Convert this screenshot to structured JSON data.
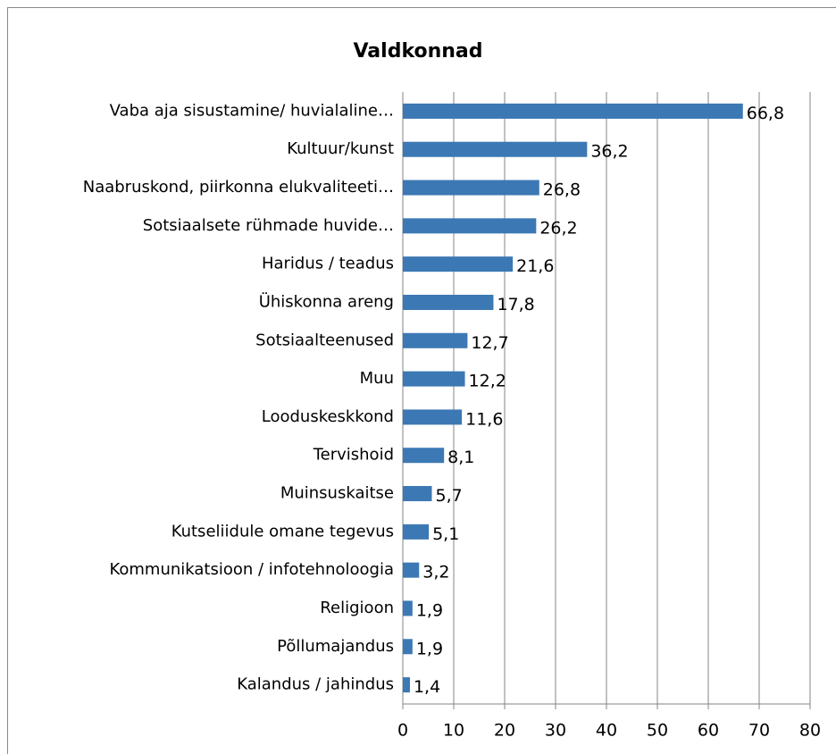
{
  "chart_data": {
    "type": "bar",
    "orientation": "horizontal",
    "title": "Valdkonnad",
    "categories": [
      "Vaba aja sisustamine/ huvialaline…",
      "Kultuur/kunst",
      "Naabruskond, piirkonna elukvaliteeti…",
      "Sotsiaalsete rühmade huvide…",
      "Haridus / teadus",
      "Ühiskonna areng",
      "Sotsiaalteenused",
      "Muu",
      "Looduskeskkond",
      "Tervishoid",
      "Muinsuskaitse",
      "Kutseliidule omane tegevus",
      "Kommunikatsioon / infotehnoloogia",
      "Religioon",
      "Põllumajandus",
      "Kalandus / jahindus"
    ],
    "values": [
      66.8,
      36.2,
      26.8,
      26.2,
      21.6,
      17.8,
      12.7,
      12.2,
      11.6,
      8.1,
      5.7,
      5.1,
      3.2,
      1.9,
      1.9,
      1.4
    ],
    "value_labels": [
      "66,8",
      "36,2",
      "26,8",
      "26,2",
      "21,6",
      "17,8",
      "12,7",
      "12,2",
      "11,6",
      "8,1",
      "5,7",
      "5,1",
      "3,2",
      "1,9",
      "1,9",
      "1,4"
    ],
    "color": "#3c78b4",
    "xlim": [
      0,
      80
    ],
    "xticks": [
      0,
      10,
      20,
      30,
      40,
      50,
      60,
      70,
      80
    ],
    "grid": true
  }
}
